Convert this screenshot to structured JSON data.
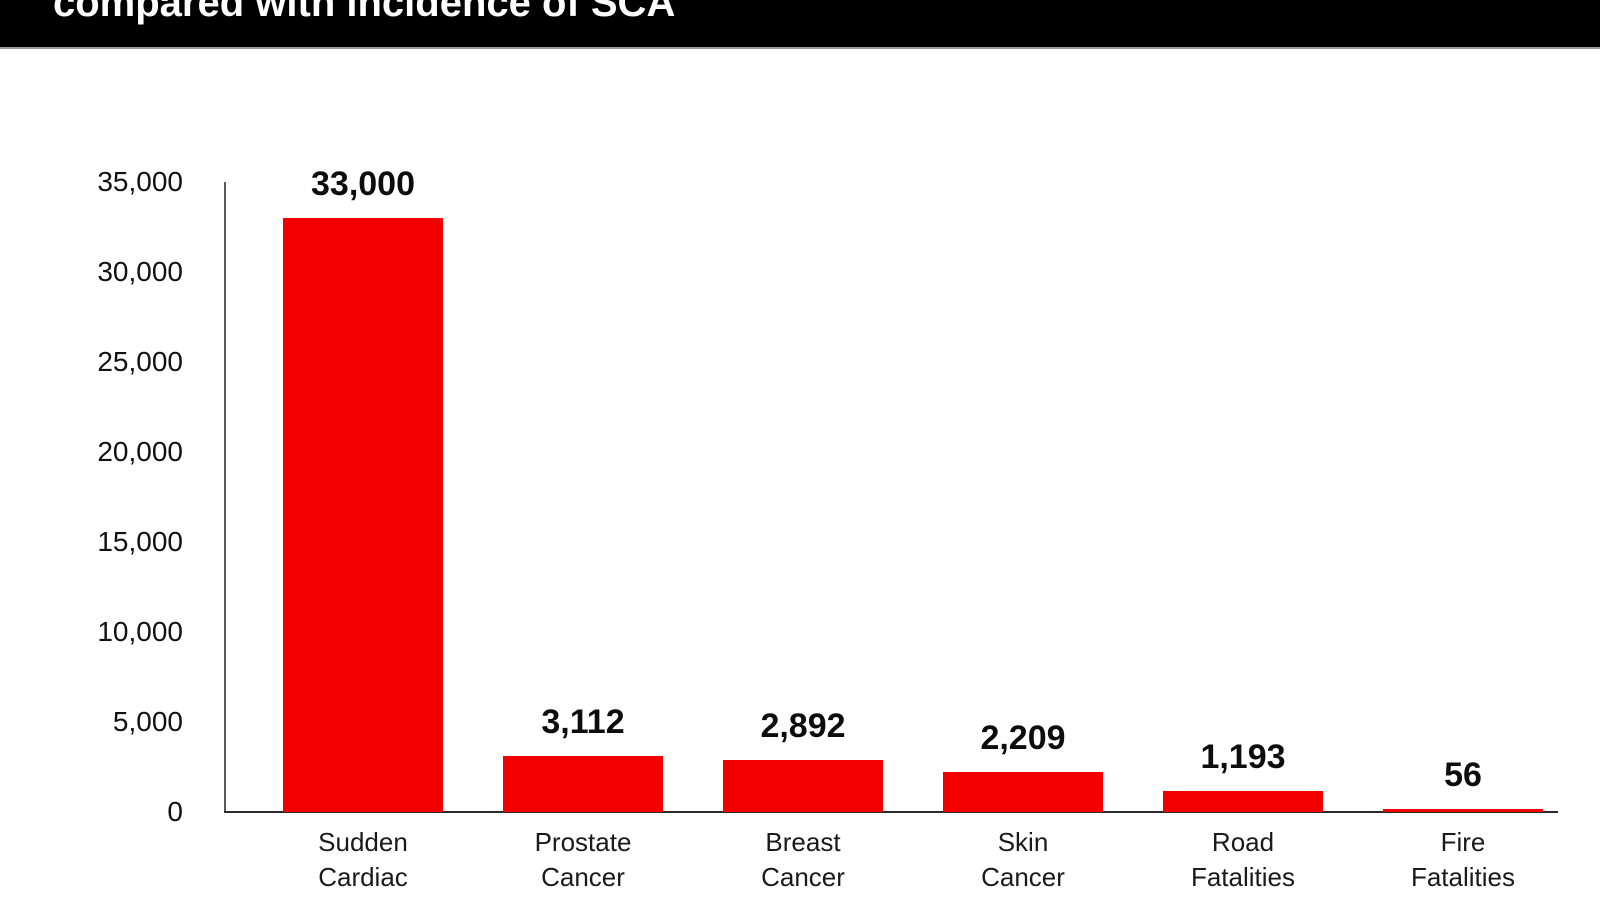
{
  "header": {
    "title": "compared with incidence of SCA",
    "bg_color": "#000000",
    "text_color": "#ffffff"
  },
  "chart_data": {
    "type": "bar",
    "title": "compared with incidence of SCA",
    "categories": [
      "Sudden\nCardiac\nArrests",
      "Prostate\nCancer\nDeaths",
      "Breast\nCancer\nDeaths",
      "Skin\nCancer\nDeaths",
      "Road\nFatalities",
      "Fire\nFatalities"
    ],
    "values": [
      33000,
      3112,
      2892,
      2209,
      1193,
      56
    ],
    "value_labels": [
      "33,000",
      "3,112",
      "2,892",
      "2,209",
      "1,193",
      "56"
    ],
    "xlabel": "",
    "ylabel": "",
    "ylim": [
      0,
      35000
    ],
    "y_tick_values": [
      35000,
      30000,
      25000,
      20000,
      15000,
      10000,
      5000,
      0
    ],
    "y_tick_labels": [
      "35,000",
      "30,000",
      "25,000",
      "20,000",
      "15,000",
      "10,000",
      "5,000",
      "0"
    ],
    "grid": false,
    "legend": false,
    "bar_color": "#f20000",
    "axis_color": "#3d3d3d",
    "label_color": "#0d0d0d"
  }
}
